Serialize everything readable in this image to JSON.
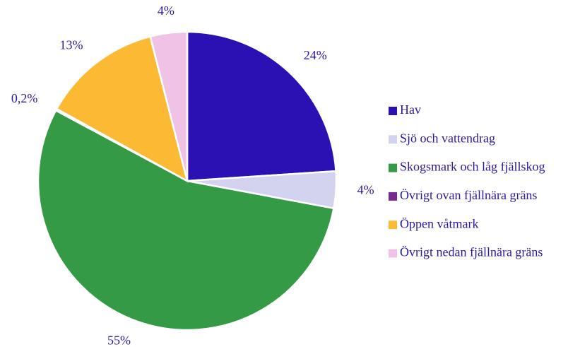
{
  "chart_data": {
    "type": "pie",
    "categories": [
      "Hav",
      "Sjö och vattendrag",
      "Skogsmark och låg fjällskog",
      "Övrigt ovan fjällnära gräns",
      "Öppen våtmark",
      "Övrigt nedan fjällnära gräns"
    ],
    "values": [
      24,
      4,
      55,
      0.2,
      13,
      4
    ],
    "value_labels": [
      "24%",
      "4%",
      "55%",
      "0,2%",
      "13%",
      "4%"
    ],
    "colors": [
      "#2b10b3",
      "#d3d3ef",
      "#349a45",
      "#7a2a8c",
      "#fbb934",
      "#efc2e6"
    ]
  }
}
